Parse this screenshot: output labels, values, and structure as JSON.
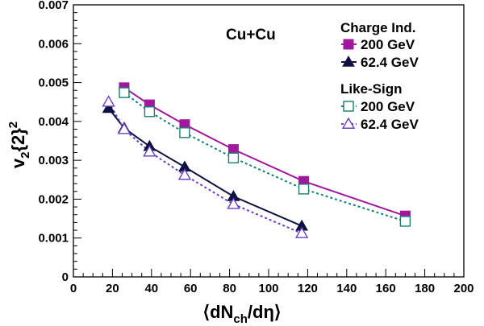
{
  "chart_data": {
    "type": "line",
    "xlabel": {
      "pre": "⟨dN",
      "sub": "ch",
      "post": "/dη⟩"
    },
    "ylabel": {
      "pre": "v",
      "sub": "2",
      "mid": "{2}",
      "sup": "2"
    },
    "xlim": [
      0,
      200
    ],
    "ylim": [
      0,
      0.007
    ],
    "xticks": [
      0,
      20,
      40,
      60,
      80,
      100,
      120,
      140,
      160,
      180,
      200
    ],
    "xtick_labels": [
      "0",
      "20",
      "40",
      "60",
      "80",
      "100",
      "120",
      "140",
      "160",
      "180",
      "200"
    ],
    "yticks": [
      0,
      0.001,
      0.002,
      0.003,
      0.004,
      0.005,
      0.006,
      0.007
    ],
    "ytick_labels": [
      "0",
      "0.001",
      "0.002",
      "0.003",
      "0.004",
      "0.005",
      "0.006",
      "0.007"
    ],
    "grid": false,
    "legend_position": "top-right",
    "annotation": "Cu+Cu",
    "legend_groups": [
      {
        "title": "Charge Ind.",
        "series": [
          0,
          1
        ]
      },
      {
        "title": "Like-Sign",
        "series": [
          2,
          3
        ]
      }
    ],
    "series": [
      {
        "name": "200 GeV",
        "group": "Charge Ind.",
        "color": "#a0189c",
        "marker": "square-filled",
        "line": "solid",
        "x": [
          26,
          39,
          57,
          82,
          118,
          170
        ],
        "y": [
          0.00487,
          0.00443,
          0.00392,
          0.00328,
          0.00246,
          0.00157
        ]
      },
      {
        "name": "62.4 GeV",
        "group": "Charge Ind.",
        "color": "#0e1240",
        "marker": "triangle-filled",
        "line": "solid",
        "x": [
          18,
          26,
          39,
          57,
          82,
          117
        ],
        "y": [
          0.00434,
          0.00383,
          0.00336,
          0.00283,
          0.00207,
          0.00131
        ]
      },
      {
        "name": "200 GeV",
        "group": "Like-Sign",
        "color": "#17806e",
        "marker": "square-open",
        "line": "dashed",
        "x": [
          26,
          39,
          57,
          82,
          118,
          170
        ],
        "y": [
          0.00474,
          0.00425,
          0.00371,
          0.00306,
          0.00226,
          0.00143
        ]
      },
      {
        "name": "62.4 GeV",
        "group": "Like-Sign",
        "color": "#6b3fc4",
        "marker": "triangle-open",
        "line": "dashed",
        "x": [
          18,
          26,
          39,
          57,
          82,
          117
        ],
        "y": [
          0.0045,
          0.0038,
          0.00322,
          0.00262,
          0.00187,
          0.00112
        ]
      }
    ]
  }
}
